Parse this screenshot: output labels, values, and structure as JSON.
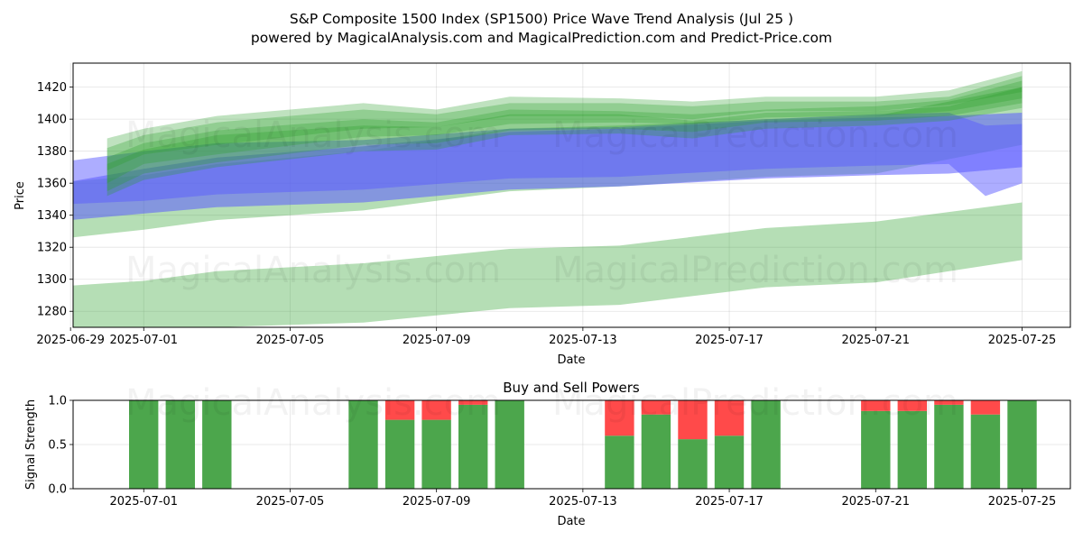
{
  "figure": {
    "title_line1": "S&P Composite 1500 Index (SP1500) Price Wave Trend Analysis (Jul 25 )",
    "title_line2": "powered by MagicalAnalysis.com and MagicalPrediction.com and Predict-Price.com",
    "watermarks": [
      "MagicalAnalysis.com",
      "MagicalPrediction.com"
    ]
  },
  "chart_data": [
    {
      "type": "area",
      "title": "",
      "xlabel": "Date",
      "ylabel": "Price",
      "xlim": [
        "2025-06-29",
        "2025-07-26"
      ],
      "ylim": [
        1270,
        1435
      ],
      "yticks": [
        1280,
        1300,
        1320,
        1340,
        1360,
        1380,
        1400,
        1420
      ],
      "xticks": [
        "2025-06-29",
        "2025-07-01",
        "2025-07-05",
        "2025-07-09",
        "2025-07-13",
        "2025-07-17",
        "2025-07-21",
        "2025-07-25"
      ],
      "grid": true,
      "colors": {
        "green_band": "#2ca02c",
        "blue_band": "#5b5bff"
      },
      "bands": [
        {
          "color": "green",
          "opacity": 0.35,
          "x": [
            "2025-06-29",
            "2025-07-01",
            "2025-07-03",
            "2025-07-07",
            "2025-07-11",
            "2025-07-14",
            "2025-07-18",
            "2025-07-21",
            "2025-07-25"
          ],
          "upper": [
            1296,
            1299,
            1305,
            1310,
            1319,
            1321,
            1332,
            1336,
            1348
          ],
          "lower": [
            1262,
            1265,
            1270,
            1273,
            1282,
            1284,
            1295,
            1298,
            1312
          ]
        },
        {
          "color": "green",
          "opacity": 0.35,
          "x": [
            "2025-06-29",
            "2025-07-01",
            "2025-07-03",
            "2025-07-07",
            "2025-07-11",
            "2025-07-14",
            "2025-07-18",
            "2025-07-21",
            "2025-07-25"
          ],
          "upper": [
            1361,
            1365,
            1372,
            1380,
            1394,
            1396,
            1400,
            1402,
            1420
          ],
          "lower": [
            1326,
            1331,
            1337,
            1343,
            1355,
            1358,
            1364,
            1366,
            1384
          ]
        },
        {
          "color": "blue",
          "opacity": 0.5,
          "x": [
            "2025-06-29",
            "2025-07-01",
            "2025-07-03",
            "2025-07-07",
            "2025-07-11",
            "2025-07-14",
            "2025-07-18",
            "2025-07-21",
            "2025-07-23",
            "2025-07-24",
            "2025-07-25"
          ],
          "upper": [
            1374,
            1380,
            1385,
            1387,
            1394,
            1395,
            1400,
            1403,
            1404,
            1396,
            1397
          ],
          "lower": [
            1347,
            1349,
            1353,
            1356,
            1363,
            1364,
            1369,
            1371,
            1372,
            1352,
            1360
          ]
        },
        {
          "color": "blue",
          "opacity": 0.55,
          "x": [
            "2025-06-29",
            "2025-07-01",
            "2025-07-03",
            "2025-07-07",
            "2025-07-11",
            "2025-07-14",
            "2025-07-18",
            "2025-07-21",
            "2025-07-23",
            "2025-07-25"
          ],
          "upper": [
            1361,
            1369,
            1376,
            1383,
            1392,
            1394,
            1399,
            1401,
            1402,
            1404
          ],
          "lower": [
            1337,
            1341,
            1345,
            1348,
            1356,
            1358,
            1363,
            1365,
            1366,
            1370
          ]
        },
        {
          "color": "green",
          "opacity": 0.3,
          "x": [
            "2025-06-30",
            "2025-07-01",
            "2025-07-03",
            "2025-07-07",
            "2025-07-09",
            "2025-07-11",
            "2025-07-14",
            "2025-07-16",
            "2025-07-18",
            "2025-07-21",
            "2025-07-23",
            "2025-07-25"
          ],
          "upper": [
            1382,
            1390,
            1398,
            1406,
            1403,
            1410,
            1410,
            1408,
            1411,
            1411,
            1414,
            1427
          ],
          "lower": [
            1360,
            1372,
            1378,
            1389,
            1390,
            1397,
            1398,
            1397,
            1401,
            1402,
            1405,
            1413
          ]
        },
        {
          "color": "green",
          "opacity": 0.3,
          "x": [
            "2025-06-30",
            "2025-07-01",
            "2025-07-03",
            "2025-07-07",
            "2025-07-09",
            "2025-07-11",
            "2025-07-14",
            "2025-07-16",
            "2025-07-18",
            "2025-07-21",
            "2025-07-23",
            "2025-07-25"
          ],
          "upper": [
            1376,
            1385,
            1393,
            1400,
            1398,
            1406,
            1405,
            1403,
            1406,
            1408,
            1412,
            1424
          ],
          "lower": [
            1355,
            1366,
            1373,
            1384,
            1385,
            1393,
            1394,
            1392,
            1398,
            1399,
            1402,
            1410
          ]
        },
        {
          "color": "green",
          "opacity": 0.3,
          "x": [
            "2025-06-30",
            "2025-07-01",
            "2025-07-03",
            "2025-07-07",
            "2025-07-09",
            "2025-07-11",
            "2025-07-14",
            "2025-07-16",
            "2025-07-18",
            "2025-07-21",
            "2025-07-23",
            "2025-07-25"
          ],
          "upper": [
            1388,
            1394,
            1402,
            1410,
            1406,
            1414,
            1413,
            1411,
            1414,
            1414,
            1418,
            1430
          ],
          "lower": [
            1368,
            1378,
            1384,
            1394,
            1395,
            1402,
            1402,
            1400,
            1405,
            1405,
            1409,
            1417
          ]
        },
        {
          "color": "green",
          "opacity": 0.3,
          "x": [
            "2025-06-30",
            "2025-07-01",
            "2025-07-03",
            "2025-07-07",
            "2025-07-09",
            "2025-07-11",
            "2025-07-14",
            "2025-07-16",
            "2025-07-18",
            "2025-07-21",
            "2025-07-23",
            "2025-07-25"
          ],
          "upper": [
            1372,
            1381,
            1390,
            1396,
            1395,
            1403,
            1403,
            1399,
            1404,
            1405,
            1408,
            1420
          ],
          "lower": [
            1352,
            1362,
            1370,
            1380,
            1381,
            1390,
            1391,
            1388,
            1394,
            1396,
            1399,
            1407
          ]
        }
      ]
    },
    {
      "type": "bar",
      "title": "Buy and Sell Powers",
      "xlabel": "Date",
      "ylabel": "Signal Strength",
      "ylim": [
        0,
        1
      ],
      "yticks": [
        "0.0",
        "0.5",
        "1.0"
      ],
      "xticks": [
        "2025-07-01",
        "2025-07-05",
        "2025-07-09",
        "2025-07-13",
        "2025-07-17",
        "2025-07-21",
        "2025-07-25"
      ],
      "xlim": [
        "2025-06-29",
        "2025-07-26"
      ],
      "grid": true,
      "colors": {
        "buy": "#4ca64c",
        "sell": "#ff4a4a"
      },
      "dates": [
        "2025-07-01",
        "2025-07-02",
        "2025-07-03",
        "2025-07-07",
        "2025-07-08",
        "2025-07-09",
        "2025-07-10",
        "2025-07-11",
        "2025-07-14",
        "2025-07-15",
        "2025-07-16",
        "2025-07-17",
        "2025-07-18",
        "2025-07-21",
        "2025-07-22",
        "2025-07-23",
        "2025-07-24",
        "2025-07-25"
      ],
      "series": [
        {
          "name": "Buy",
          "values": [
            1.0,
            1.0,
            1.0,
            1.0,
            0.78,
            0.78,
            0.95,
            1.0,
            0.6,
            0.84,
            0.56,
            0.6,
            1.0,
            0.88,
            0.88,
            0.95,
            0.84,
            1.0
          ]
        },
        {
          "name": "Sell",
          "values": [
            0.0,
            0.0,
            0.0,
            0.0,
            0.22,
            0.22,
            0.05,
            0.0,
            0.4,
            0.16,
            0.44,
            0.4,
            0.0,
            0.12,
            0.12,
            0.05,
            0.16,
            0.0
          ]
        }
      ]
    }
  ]
}
